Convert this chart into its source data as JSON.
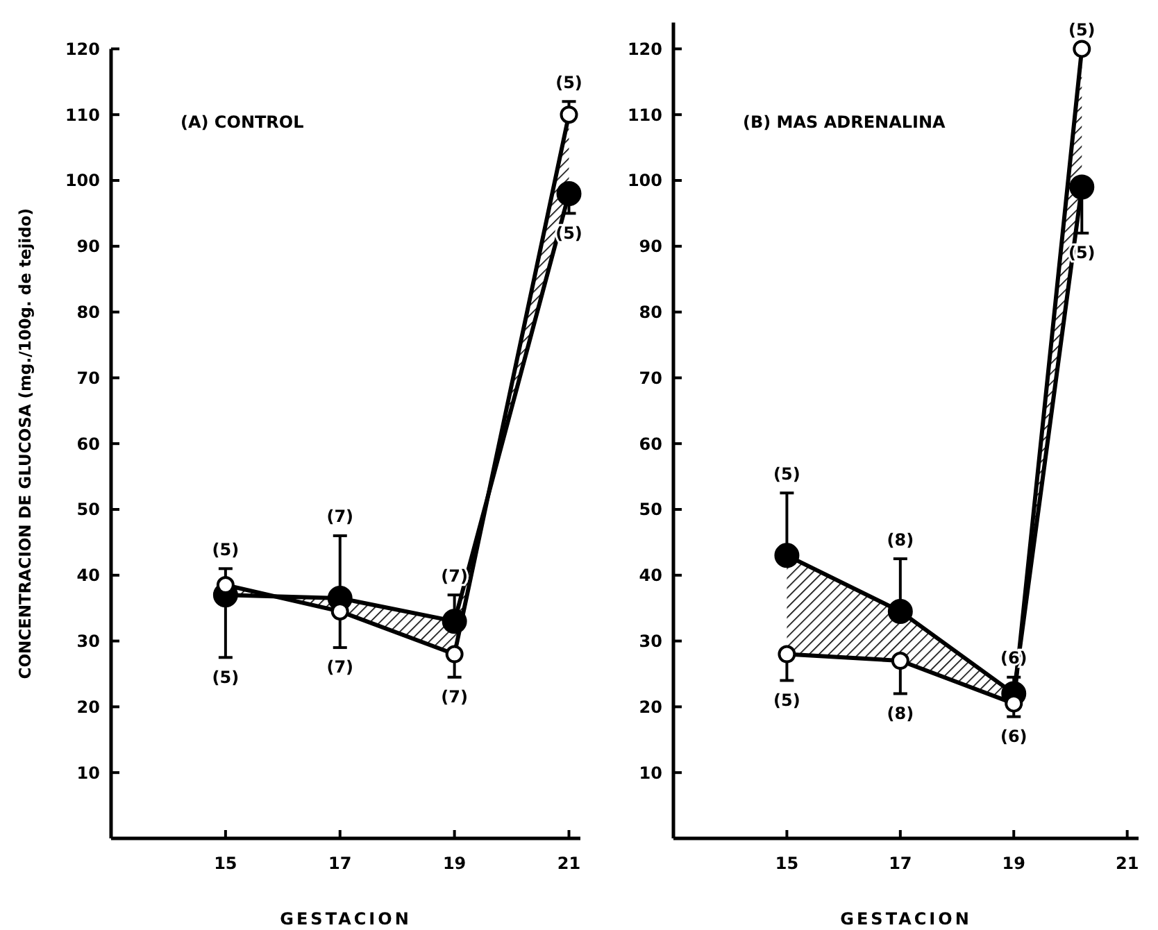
{
  "chart_data": [
    {
      "type": "line",
      "title": "(A)  CONTROL",
      "xlabel": "GESTACION",
      "ylabel": "CONCENTRACION DE GLUCOSA (mg./100g. de tejido)",
      "x": [
        15,
        17,
        19,
        21
      ],
      "xlim": [
        13,
        21.2
      ],
      "xticks": [
        15,
        17,
        19,
        21
      ],
      "ylim": [
        0,
        120
      ],
      "yticks": [
        10,
        20,
        30,
        40,
        50,
        60,
        70,
        80,
        90,
        100,
        110,
        120
      ],
      "marker": "circle",
      "grid": false,
      "series": [
        {
          "color": "#000000",
          "values": [
            37,
            36.5,
            33,
            98
          ],
          "errors": [
            [
              27.5,
              37
            ],
            [
              36.5,
              46
            ],
            [
              33,
              37
            ],
            [
              95,
              98
            ]
          ],
          "lower": [
            37,
            36.5,
            33,
            98
          ],
          "upper": [
            38.5,
            34.5,
            28,
            110
          ]
        },
        {
          "color": "#000000",
          "values": [
            38.5,
            34.5,
            28,
            110
          ],
          "errors": [
            [
              38.5,
              41
            ],
            [
              29,
              34.5
            ],
            [
              24.5,
              28
            ],
            [
              110,
              112
            ]
          ]
        }
      ],
      "annotations": [
        {
          "text": "(5)",
          "x": 15,
          "y": 41
        },
        {
          "text": "(5)",
          "x": 15,
          "y": 27.5
        },
        {
          "text": "(7)",
          "x": 17,
          "y": 46
        },
        {
          "text": "(7)",
          "x": 17,
          "y": 29
        },
        {
          "text": "(7)",
          "x": 19,
          "y": 37
        },
        {
          "text": "(7)",
          "x": 19,
          "y": 24.5
        },
        {
          "text": "(5)",
          "x": 21,
          "y": 112
        },
        {
          "text": "(5)",
          "x": 21,
          "y": 95
        }
      ]
    },
    {
      "type": "line",
      "title": "(B) MAS ADRENALINA",
      "xlabel": "GESTACION",
      "x": [
        15,
        17,
        19,
        20.2
      ],
      "xlim": [
        13,
        21.2
      ],
      "xticks": [
        15,
        17,
        19,
        21
      ],
      "ylim": [
        0,
        124
      ],
      "yticks": [
        10,
        20,
        30,
        40,
        50,
        60,
        70,
        80,
        90,
        100,
        110,
        120
      ],
      "marker": "circle",
      "grid": false,
      "series": [
        {
          "color": "#000000",
          "values": [
            43,
            34.5,
            22,
            99
          ],
          "errors": [
            [
              43,
              52.5
            ],
            [
              34.5,
              42.5
            ],
            [
              22,
              24.5
            ],
            [
              92,
              99
            ]
          ],
          "lower": [
            43,
            34.5,
            22,
            99
          ],
          "upper": [
            28,
            27,
            20.5,
            120
          ]
        },
        {
          "color": "#000000",
          "values": [
            28,
            27,
            20.5,
            120
          ],
          "errors": [
            [
              24,
              28
            ],
            [
              22,
              27
            ],
            [
              18.5,
              20.5
            ],
            null
          ]
        }
      ],
      "annotations": [
        {
          "text": "(5)",
          "x": 15,
          "y": 52.5
        },
        {
          "text": "(5)",
          "x": 15,
          "y": 24
        },
        {
          "text": "(8)",
          "x": 17,
          "y": 42.5
        },
        {
          "text": "(8)",
          "x": 17,
          "y": 22
        },
        {
          "text": "(6)",
          "x": 19,
          "y": 24.5
        },
        {
          "text": "(6)",
          "x": 19,
          "y": 18.5
        },
        {
          "text": "(5)",
          "x": 20.2,
          "y": 120
        },
        {
          "text": "(5)",
          "x": 20.2,
          "y": 92
        }
      ]
    }
  ]
}
